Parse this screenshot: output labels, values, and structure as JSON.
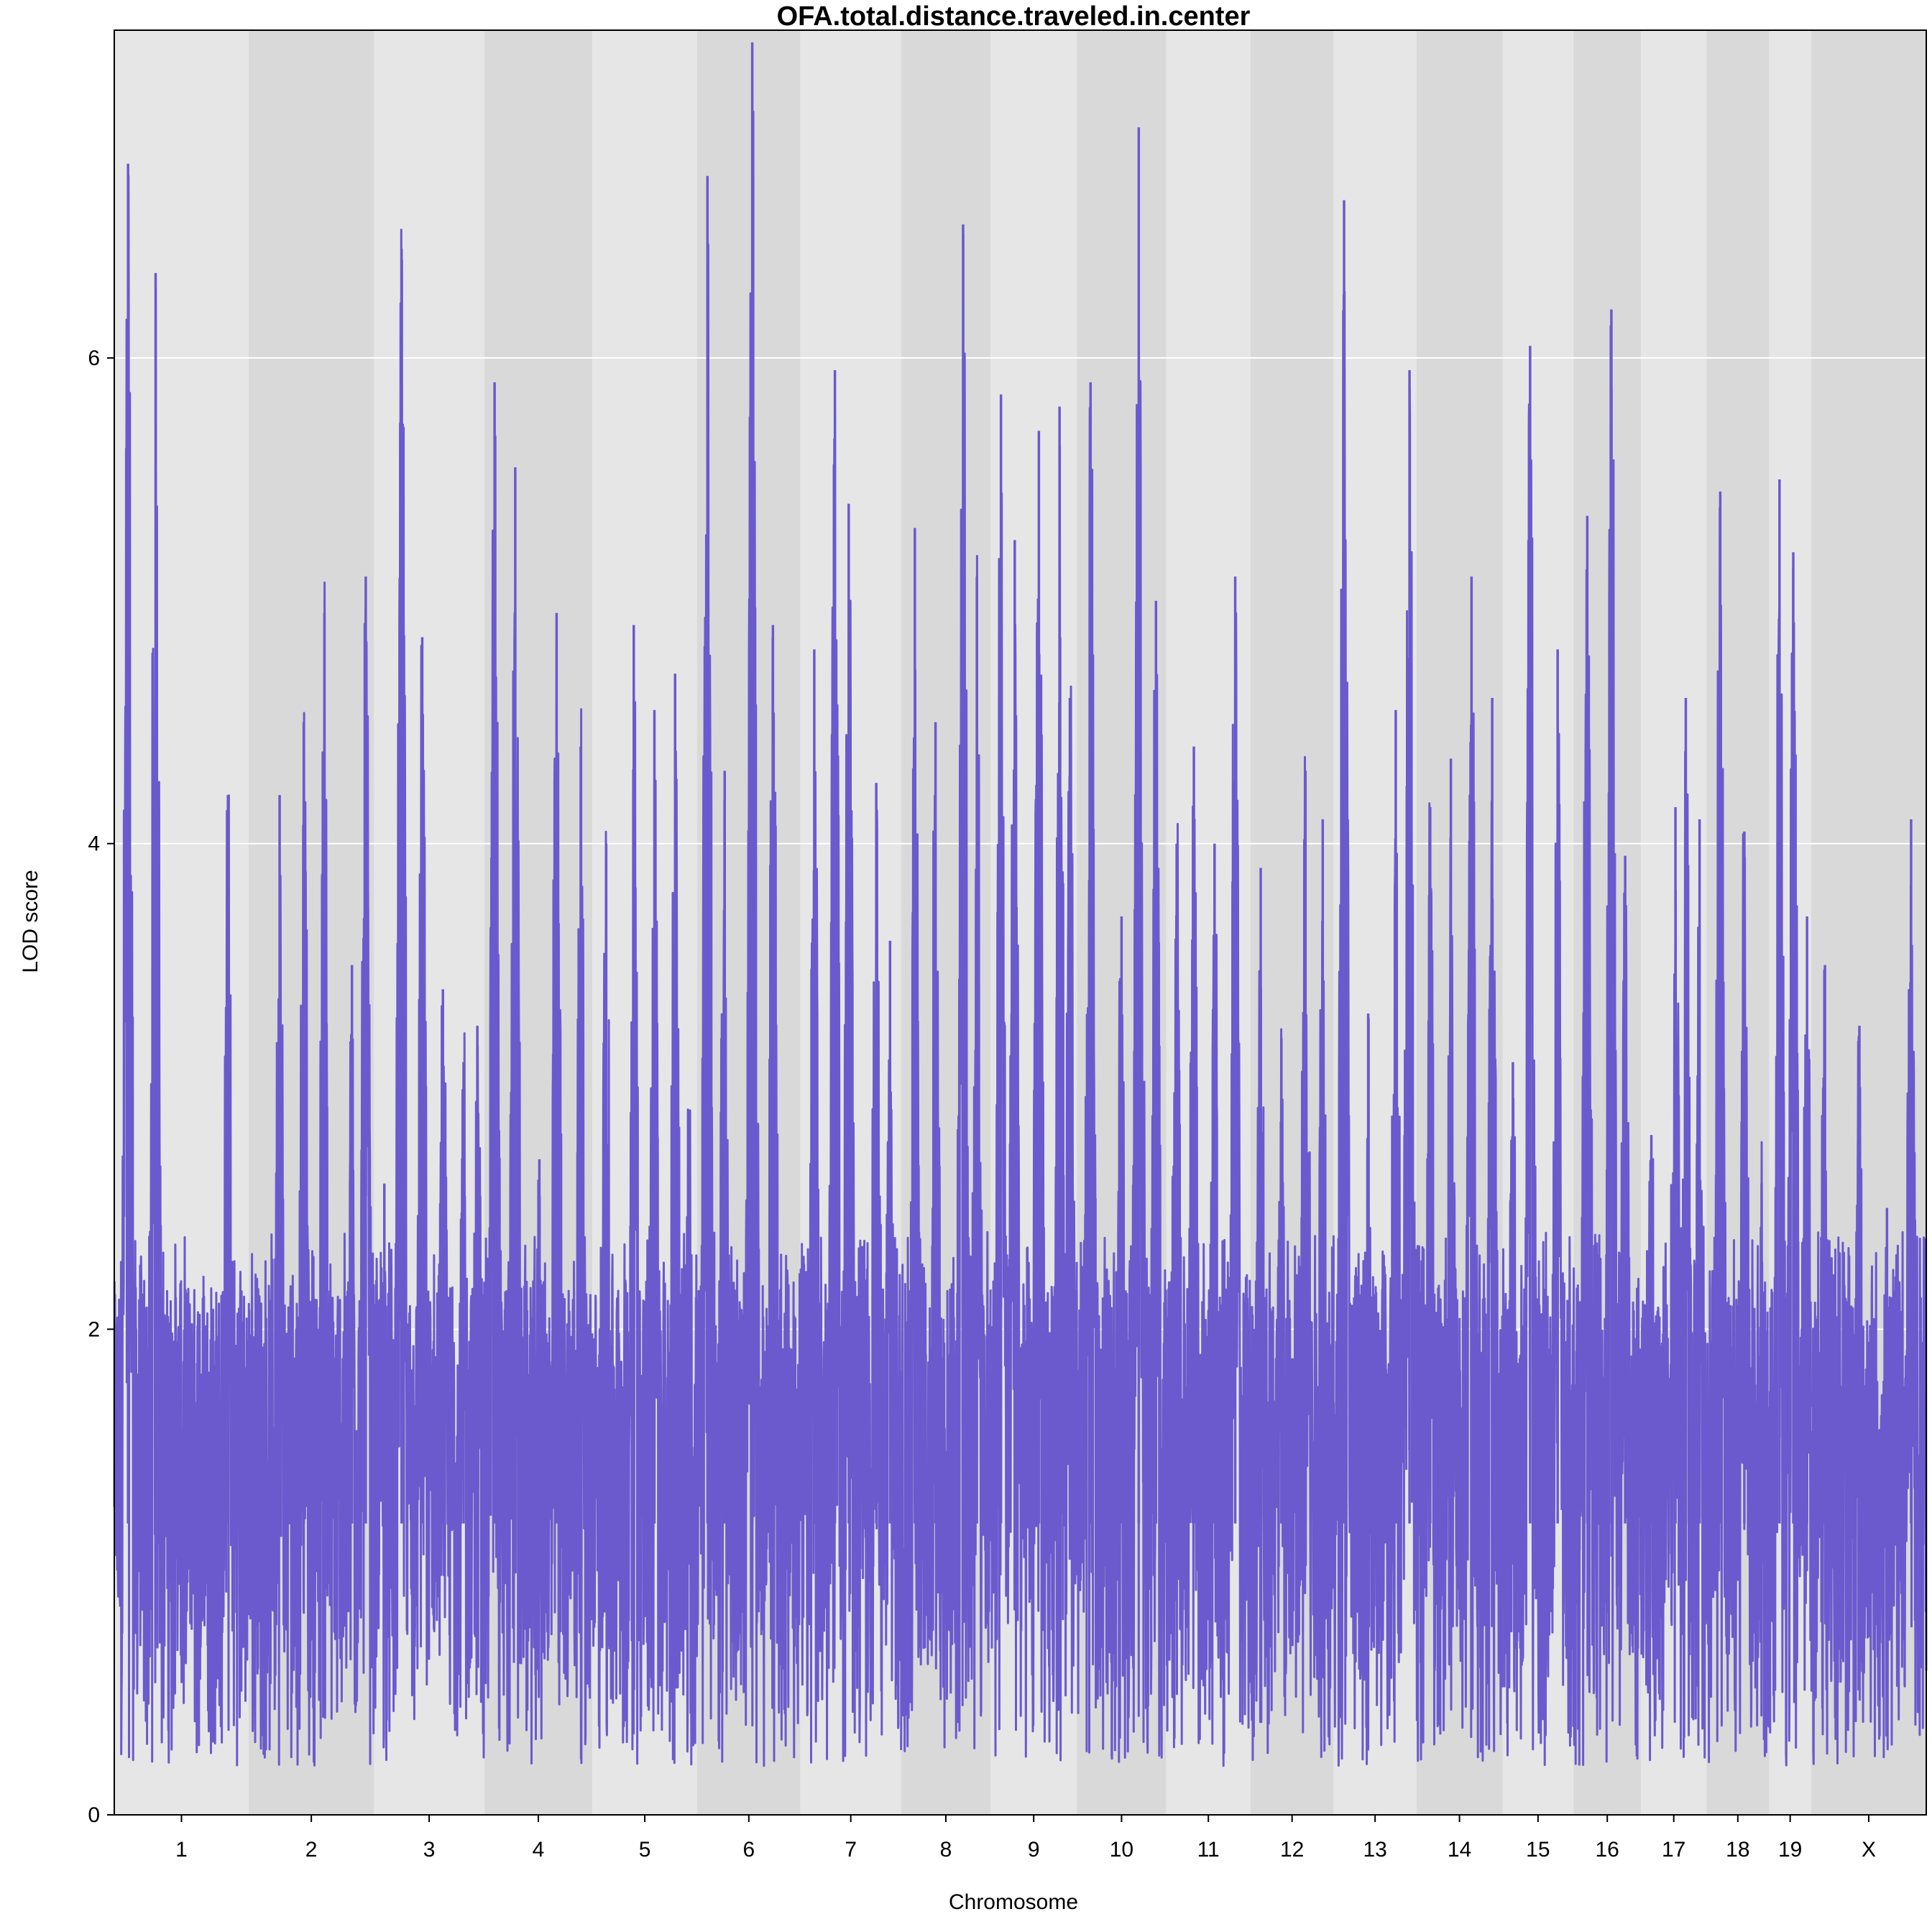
{
  "chart_data": {
    "type": "line",
    "title": "OFA.total.distance.traveled.in.center",
    "xlabel": "Chromosome",
    "ylabel": "LOD score",
    "ylim": [
      0,
      7.35
    ],
    "yticks": [
      0,
      2,
      4,
      6
    ],
    "grid": "horizontal lines at y ticks; alternating chromosome background bands",
    "line_color": "#6a5acd",
    "band_colors": [
      "#e6e6e6",
      "#d9d9d9"
    ],
    "chromosomes": [
      {
        "label": "1",
        "start": 0,
        "end": 195,
        "peaks": [
          [
            20,
            6.8
          ],
          [
            35,
            1.0
          ],
          [
            60,
            6.35
          ],
          [
            85,
            0.5
          ],
          [
            110,
            1.2
          ],
          [
            165,
            4.2
          ]
        ]
      },
      {
        "label": "2",
        "start": 195,
        "end": 377,
        "peaks": [
          [
            20,
            1.7
          ],
          [
            45,
            4.2
          ],
          [
            80,
            4.5
          ],
          [
            110,
            4.95
          ],
          [
            150,
            3.5
          ],
          [
            170,
            5.1
          ]
        ]
      },
      {
        "label": "3",
        "start": 377,
        "end": 537,
        "peaks": [
          [
            15,
            2.6
          ],
          [
            40,
            6.45
          ],
          [
            70,
            4.85
          ],
          [
            100,
            3.4
          ],
          [
            130,
            3.1
          ],
          [
            150,
            3.25
          ]
        ]
      },
      {
        "label": "4",
        "start": 537,
        "end": 694,
        "peaks": [
          [
            15,
            5.9
          ],
          [
            45,
            5.55
          ],
          [
            80,
            2.7
          ],
          [
            105,
            4.95
          ],
          [
            140,
            4.4
          ]
        ]
      },
      {
        "label": "5",
        "start": 694,
        "end": 846,
        "peaks": [
          [
            20,
            4.0
          ],
          [
            60,
            4.9
          ],
          [
            90,
            4.55
          ],
          [
            120,
            4.7
          ],
          [
            140,
            2.9
          ]
        ]
      },
      {
        "label": "6",
        "start": 846,
        "end": 996,
        "peaks": [
          [
            15,
            6.75
          ],
          [
            40,
            4.3
          ],
          [
            80,
            7.3
          ],
          [
            110,
            4.9
          ]
        ]
      },
      {
        "label": "7",
        "start": 996,
        "end": 1142,
        "peaks": [
          [
            20,
            4.8
          ],
          [
            50,
            5.95
          ],
          [
            70,
            5.4
          ],
          [
            110,
            4.25
          ],
          [
            130,
            3.6
          ]
        ]
      },
      {
        "label": "8",
        "start": 1142,
        "end": 1272,
        "peaks": [
          [
            20,
            5.3
          ],
          [
            50,
            4.5
          ],
          [
            90,
            6.55
          ],
          [
            110,
            5.1
          ]
        ]
      },
      {
        "label": "9",
        "start": 1272,
        "end": 1397,
        "peaks": [
          [
            15,
            5.85
          ],
          [
            35,
            5.25
          ],
          [
            70,
            5.7
          ],
          [
            100,
            5.8
          ],
          [
            115,
            4.6
          ]
        ]
      },
      {
        "label": "10",
        "start": 1397,
        "end": 1527,
        "peaks": [
          [
            20,
            5.9
          ],
          [
            65,
            3.7
          ],
          [
            90,
            6.95
          ],
          [
            115,
            5.0
          ]
        ]
      },
      {
        "label": "11",
        "start": 1527,
        "end": 1649,
        "peaks": [
          [
            15,
            4.0
          ],
          [
            40,
            4.4
          ],
          [
            70,
            4.0
          ],
          [
            100,
            5.1
          ]
        ]
      },
      {
        "label": "12",
        "start": 1649,
        "end": 1770,
        "peaks": [
          [
            15,
            3.9
          ],
          [
            45,
            3.2
          ],
          [
            80,
            4.3
          ],
          [
            105,
            4.1
          ]
        ]
      },
      {
        "label": "13",
        "start": 1770,
        "end": 1890,
        "peaks": [
          [
            15,
            6.65
          ],
          [
            50,
            3.3
          ],
          [
            90,
            4.55
          ],
          [
            110,
            5.95
          ]
        ]
      },
      {
        "label": "14",
        "start": 1890,
        "end": 2015,
        "peaks": [
          [
            20,
            4.15
          ],
          [
            50,
            4.35
          ],
          [
            80,
            5.1
          ],
          [
            110,
            4.6
          ]
        ]
      },
      {
        "label": "15",
        "start": 2015,
        "end": 2118,
        "peaks": [
          [
            15,
            3.1
          ],
          [
            40,
            6.05
          ],
          [
            80,
            4.8
          ]
        ]
      },
      {
        "label": "16",
        "start": 2118,
        "end": 2216,
        "peaks": [
          [
            20,
            5.35
          ],
          [
            55,
            6.2
          ],
          [
            75,
            3.95
          ]
        ]
      },
      {
        "label": "17",
        "start": 2216,
        "end": 2311,
        "peaks": [
          [
            15,
            2.8
          ],
          [
            50,
            4.15
          ],
          [
            65,
            4.6
          ],
          [
            85,
            4.1
          ]
        ]
      },
      {
        "label": "18",
        "start": 2311,
        "end": 2402,
        "peaks": [
          [
            20,
            5.45
          ],
          [
            55,
            4.05
          ],
          [
            80,
            2.6
          ]
        ]
      },
      {
        "label": "19",
        "start": 2402,
        "end": 2463,
        "peaks": [
          [
            15,
            5.5
          ],
          [
            35,
            5.2
          ],
          [
            55,
            3.7
          ]
        ]
      },
      {
        "label": "X",
        "start": 2463,
        "end": 2630,
        "peaks": [
          [
            20,
            3.5
          ],
          [
            70,
            3.25
          ],
          [
            110,
            2.5
          ],
          [
            145,
            4.1
          ]
        ]
      }
    ]
  }
}
